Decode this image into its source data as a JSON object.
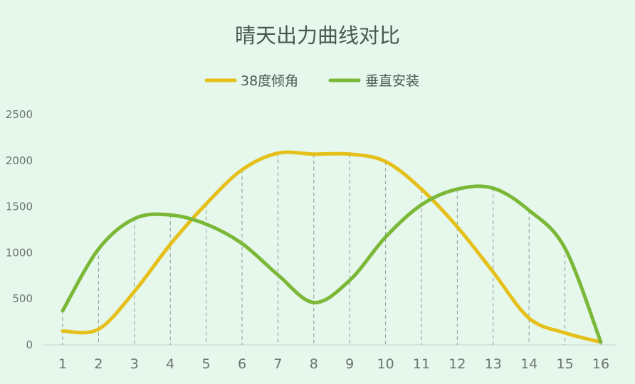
{
  "chart_data": {
    "type": "line",
    "title": "晴天出力曲线对比",
    "xlabel": "",
    "ylabel": "",
    "categories": [
      "1",
      "2",
      "3",
      "4",
      "5",
      "6",
      "7",
      "8",
      "9",
      "10",
      "11",
      "12",
      "13",
      "14",
      "15",
      "16"
    ],
    "ylim": [
      0,
      2500
    ],
    "yticks": [
      "0",
      "500",
      "1000",
      "1500",
      "2000",
      "2500"
    ],
    "legend_position": "top",
    "smooth": true,
    "drop_lines": true,
    "series": [
      {
        "name": "38度倾角",
        "color": "#e6c01a",
        "values": [
          150,
          170,
          580,
          1090,
          1530,
          1900,
          2080,
          2070,
          2070,
          1990,
          1690,
          1280,
          790,
          290,
          130,
          30
        ]
      },
      {
        "name": "垂直安装",
        "color": "#7bb837",
        "values": [
          370,
          1040,
          1370,
          1410,
          1310,
          1100,
          760,
          460,
          700,
          1170,
          1520,
          1690,
          1700,
          1460,
          1050,
          30
        ]
      }
    ]
  }
}
